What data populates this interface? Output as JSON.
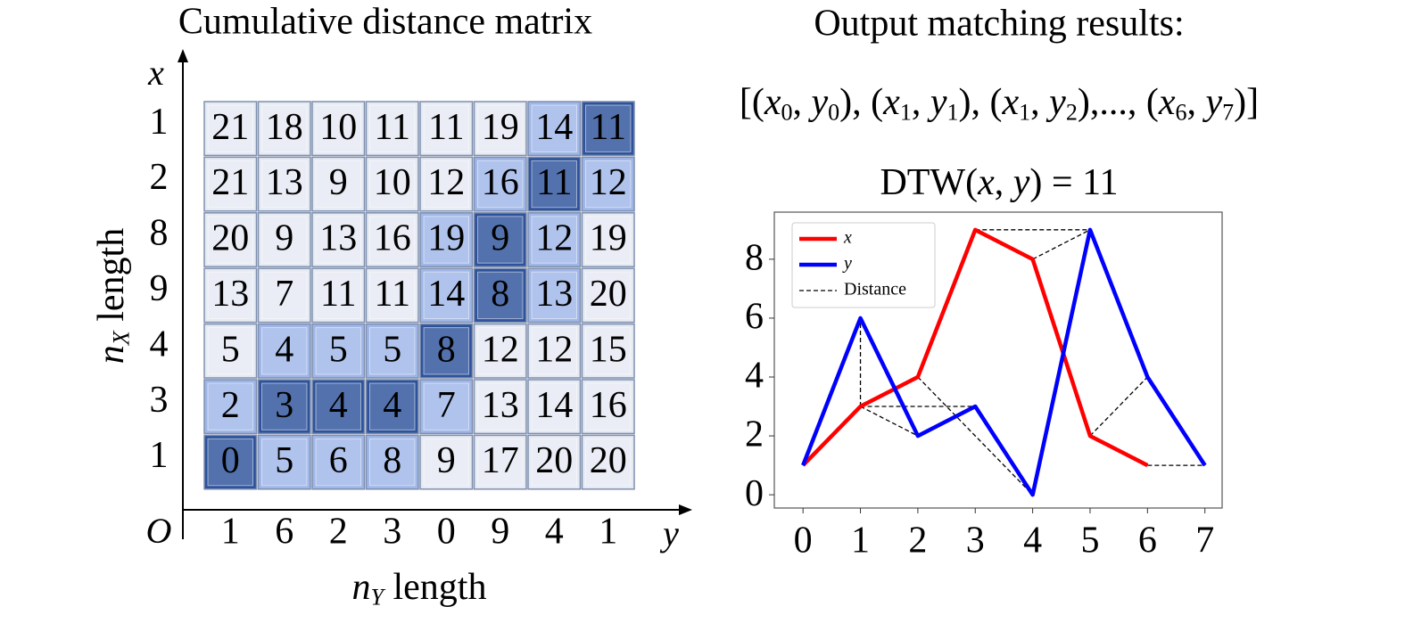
{
  "matrix": {
    "title": "Cumulative distance matrix",
    "x_axis_label": "x",
    "y_axis_label": "y",
    "origin_label": "O",
    "row_axis_title": [
      {
        "t": "n",
        "italic": true
      },
      {
        "t": "X",
        "italic": true,
        "sub": true
      },
      {
        "t": " length"
      }
    ],
    "col_axis_title": [
      {
        "t": "n",
        "italic": true
      },
      {
        "t": "Y",
        "italic": true,
        "sub": true
      },
      {
        "t": " length"
      }
    ],
    "row_labels": [
      1,
      2,
      8,
      9,
      4,
      3,
      1
    ],
    "col_labels": [
      1,
      6,
      2,
      3,
      0,
      9,
      4,
      1
    ],
    "rows": [
      [
        21,
        18,
        10,
        11,
        11,
        19,
        14,
        11
      ],
      [
        21,
        13,
        9,
        10,
        12,
        16,
        11,
        12
      ],
      [
        20,
        9,
        13,
        16,
        19,
        9,
        12,
        19
      ],
      [
        13,
        7,
        11,
        11,
        14,
        8,
        13,
        20
      ],
      [
        5,
        4,
        5,
        5,
        8,
        12,
        12,
        15
      ],
      [
        2,
        3,
        4,
        4,
        7,
        13,
        14,
        16
      ],
      [
        0,
        5,
        6,
        8,
        9,
        17,
        20,
        20
      ]
    ],
    "shade": [
      [
        0,
        0,
        0,
        0,
        0,
        0,
        1,
        2
      ],
      [
        0,
        0,
        0,
        0,
        0,
        1,
        2,
        1
      ],
      [
        0,
        0,
        0,
        0,
        1,
        2,
        1,
        0
      ],
      [
        0,
        0,
        0,
        0,
        1,
        2,
        1,
        0
      ],
      [
        0,
        1,
        1,
        1,
        2,
        0,
        0,
        0
      ],
      [
        1,
        2,
        2,
        2,
        1,
        0,
        0,
        0
      ],
      [
        2,
        1,
        1,
        1,
        0,
        0,
        0,
        0
      ]
    ],
    "shade_colors": [
      "#e6eaf3",
      "#9fb6e8",
      "#2e539c"
    ]
  },
  "results": {
    "title": "Output matching results:",
    "formula": [
      {
        "t": "[("
      },
      {
        "t": "x",
        "italic": true
      },
      {
        "t": "0",
        "sub": true
      },
      {
        "t": ", "
      },
      {
        "t": "y",
        "italic": true
      },
      {
        "t": "0",
        "sub": true
      },
      {
        "t": "), ("
      },
      {
        "t": "x",
        "italic": true
      },
      {
        "t": "1",
        "sub": true
      },
      {
        "t": ", "
      },
      {
        "t": "y",
        "italic": true
      },
      {
        "t": "1",
        "sub": true
      },
      {
        "t": "), ("
      },
      {
        "t": "x",
        "italic": true
      },
      {
        "t": "1",
        "sub": true
      },
      {
        "t": ", "
      },
      {
        "t": "y",
        "italic": true
      },
      {
        "t": "2",
        "sub": true
      },
      {
        "t": "),..., ("
      },
      {
        "t": "x",
        "italic": true
      },
      {
        "t": "6",
        "sub": true
      },
      {
        "t": ", "
      },
      {
        "t": "y",
        "italic": true
      },
      {
        "t": "7",
        "sub": true
      },
      {
        "t": ")]"
      }
    ]
  },
  "chart_data": {
    "type": "line",
    "title": [
      {
        "t": "DTW("
      },
      {
        "t": "x",
        "italic": true
      },
      {
        "t": ", "
      },
      {
        "t": "y",
        "italic": true
      },
      {
        "t": ") = 11"
      }
    ],
    "x": [
      0,
      1,
      2,
      3,
      4,
      5,
      6,
      7
    ],
    "series": [
      {
        "name": "x",
        "color": "#ff0000",
        "values": [
          1,
          3,
          4,
          9,
          8,
          2,
          1,
          null
        ]
      },
      {
        "name": "y",
        "color": "#0000ff",
        "values": [
          1,
          6,
          2,
          3,
          0,
          9,
          4,
          1
        ]
      }
    ],
    "matches": [
      [
        0,
        0
      ],
      [
        1,
        1
      ],
      [
        1,
        2
      ],
      [
        1,
        3
      ],
      [
        2,
        4
      ],
      [
        3,
        5
      ],
      [
        4,
        5
      ],
      [
        5,
        6
      ],
      [
        6,
        7
      ]
    ],
    "distance_label": "Distance",
    "distance_color": "#000000",
    "xlim": [
      -0.5,
      7.3
    ],
    "ylim": [
      -0.45,
      9.6
    ],
    "xticks": [
      0,
      1,
      2,
      3,
      4,
      5,
      6,
      7
    ],
    "yticks": [
      0,
      2,
      4,
      6,
      8
    ],
    "legend": "upper left"
  }
}
